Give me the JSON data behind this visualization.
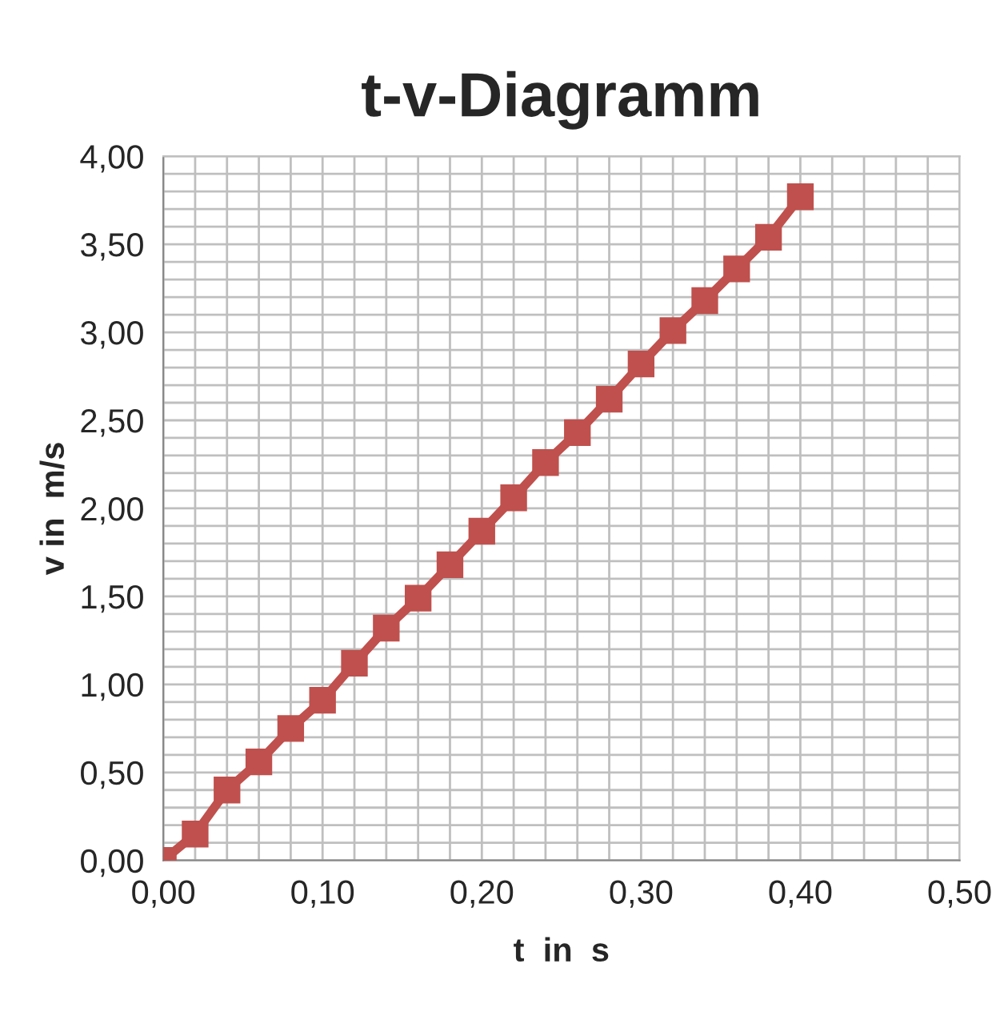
{
  "chart_data": {
    "type": "line",
    "title": "t-v-Diagramm",
    "xlabel": "t  in  s",
    "ylabel": "v in  m/s",
    "x": [
      0,
      0.02,
      0.04,
      0.06,
      0.08,
      0.1,
      0.12,
      0.14,
      0.16,
      0.18,
      0.2,
      0.22,
      0.24,
      0.26,
      0.28,
      0.3,
      0.32,
      0.34,
      0.36,
      0.38,
      0.4
    ],
    "series": [
      {
        "color": "#c0504d",
        "values": [
          0,
          0.15,
          0.4,
          0.56,
          0.75,
          0.91,
          1.12,
          1.32,
          1.49,
          1.68,
          1.87,
          2.06,
          2.26,
          2.43,
          2.62,
          2.82,
          3.01,
          3.18,
          3.36,
          3.54,
          3.77
        ]
      }
    ],
    "xlim": [
      0,
      0.5
    ],
    "ylim": [
      0,
      4
    ],
    "xticks": [
      {
        "value": 0,
        "label": "0,00"
      },
      {
        "value": 0.1,
        "label": "0,10"
      },
      {
        "value": 0.2,
        "label": "0,20"
      },
      {
        "value": 0.3,
        "label": "0,30"
      },
      {
        "value": 0.4,
        "label": "0,40"
      },
      {
        "value": 0.5,
        "label": "0,50"
      }
    ],
    "yticks": [
      {
        "value": 0,
        "label": "0,00"
      },
      {
        "value": 0.5,
        "label": "0,50"
      },
      {
        "value": 1,
        "label": "1,00"
      },
      {
        "value": 1.5,
        "label": "1,50"
      },
      {
        "value": 2,
        "label": "2,00"
      },
      {
        "value": 2.5,
        "label": "2,50"
      },
      {
        "value": 3,
        "label": "3,00"
      },
      {
        "value": 3.5,
        "label": "3,50"
      },
      {
        "value": 4,
        "label": "4,00"
      }
    ],
    "grid": true,
    "marker": "square",
    "line_style": "solid"
  }
}
